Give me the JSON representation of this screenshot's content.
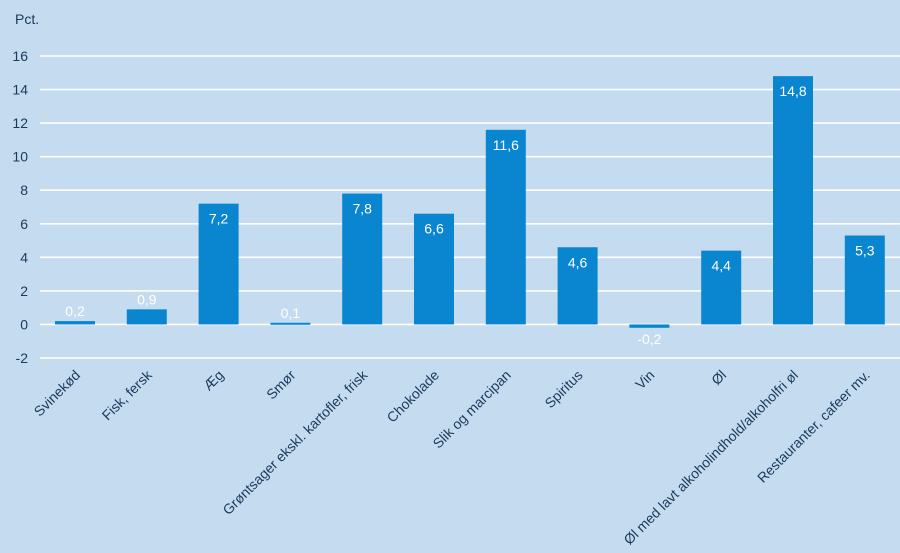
{
  "chart_data": {
    "type": "bar",
    "ylabel": "Pct.",
    "ylim": [
      -2,
      16
    ],
    "yticks": [
      -2,
      0,
      2,
      4,
      6,
      8,
      10,
      12,
      14,
      16
    ],
    "grid": true,
    "categories": [
      "Svinekød",
      "Fisk, fersk",
      "Æg",
      "Smør",
      "Grøntsager ekskl. kartofler, frisk",
      "Chokolade",
      "Slik og marcipan",
      "Spiritus",
      "Vin",
      "Øl",
      "Øl med lavt alkoholindhold/alkoholfri øl",
      "Restauranter, cafeer mv."
    ],
    "values": [
      0.2,
      0.9,
      7.2,
      0.1,
      7.8,
      6.6,
      11.6,
      4.6,
      -0.2,
      4.4,
      14.8,
      5.3
    ],
    "value_labels": [
      "0,2",
      "0,9",
      "7,2",
      "0,1",
      "7,8",
      "6,6",
      "11,6",
      "4,6",
      "-0,2",
      "4,4",
      "14,8",
      "5,3"
    ],
    "tick_labels": [
      "-2",
      "0",
      "2",
      "4",
      "6",
      "8",
      "10",
      "12",
      "14",
      "16"
    ]
  },
  "colors": {
    "background": "#c5dcf0",
    "bar": "#0a86d1",
    "grid": "#ffffff",
    "text": "#1a3a5c",
    "value_text": "#ffffff"
  }
}
